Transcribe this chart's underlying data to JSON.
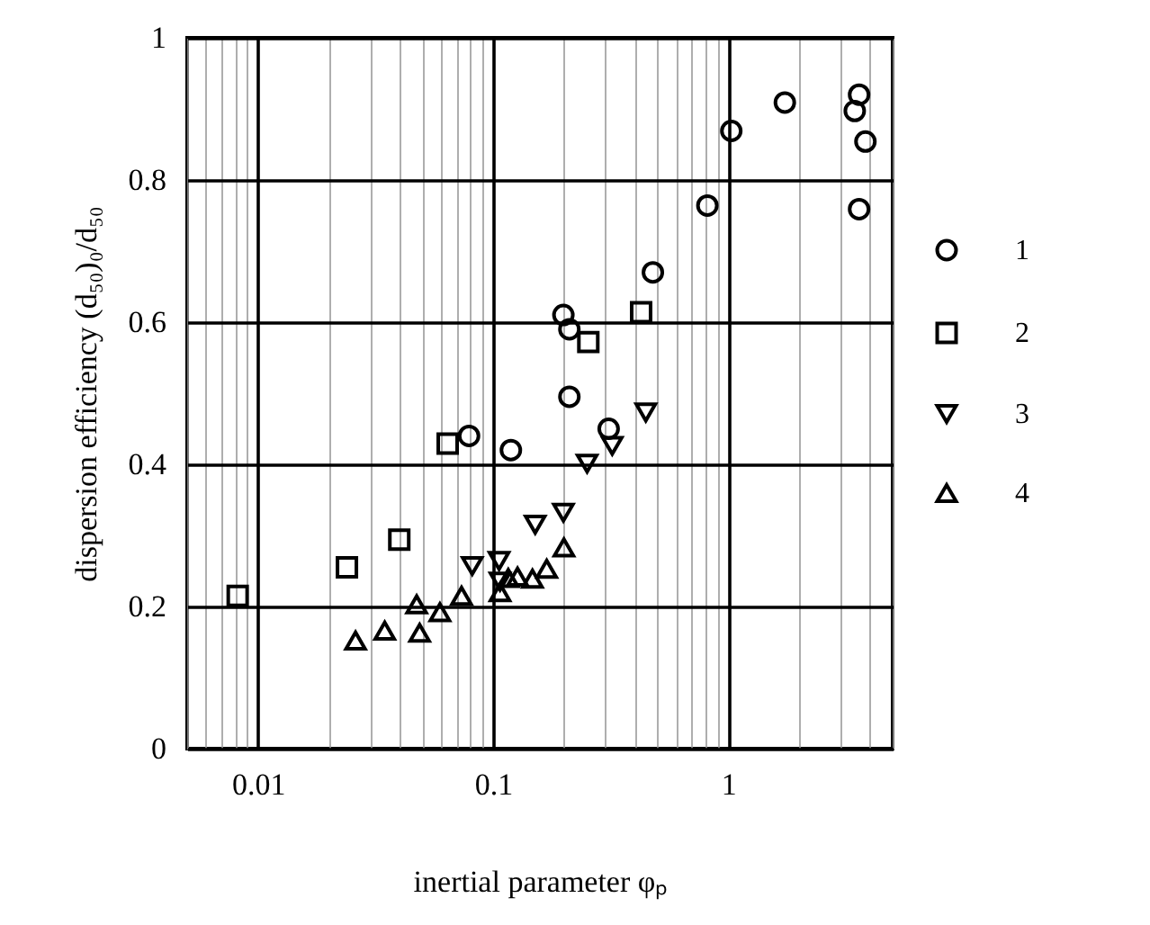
{
  "chart_data": {
    "type": "scatter",
    "xlabel": "inertial parameter  φₚ",
    "ylabel": "dispersion efficiency  (d₅₀)₀/d₅₀",
    "log": "x",
    "grid": true,
    "legend": "right",
    "xlim": [
      0.005,
      5
    ],
    "xticks": [
      {
        "value": 0.005,
        "label": null
      },
      {
        "value": 0.006,
        "label": null
      },
      {
        "value": 0.007,
        "label": null
      },
      {
        "value": 0.008,
        "label": null
      },
      {
        "value": 0.009,
        "label": null
      },
      0.01,
      {
        "value": 0.02,
        "label": null
      },
      {
        "value": 0.03,
        "label": null
      },
      {
        "value": 0.04,
        "label": null
      },
      {
        "value": 0.05,
        "label": null
      },
      {
        "value": 0.06,
        "label": null
      },
      {
        "value": 0.07,
        "label": null
      },
      {
        "value": 0.08,
        "label": null
      },
      {
        "value": 0.09,
        "label": null
      },
      0.1,
      {
        "value": 0.2,
        "label": null
      },
      {
        "value": 0.3,
        "label": null
      },
      {
        "value": 0.4,
        "label": null
      },
      {
        "value": 0.5,
        "label": null
      },
      {
        "value": 0.6,
        "label": null
      },
      {
        "value": 0.7,
        "label": null
      },
      {
        "value": 0.8,
        "label": null
      },
      {
        "value": 0.9,
        "label": null
      },
      1,
      {
        "value": 2,
        "label": null
      },
      {
        "value": 3,
        "label": null
      },
      {
        "value": 4,
        "label": null
      },
      {
        "value": 5,
        "label": null
      }
    ],
    "ylim": [
      0,
      1
    ],
    "yticks": [
      0,
      0.2,
      0.4,
      0.6,
      0.8,
      1
    ],
    "series": [
      {
        "name": "1",
        "color": "#000000",
        "marker": "circle",
        "x": [
          0.079,
          0.119,
          0.199,
          0.211,
          0.211,
          0.31,
          0.478,
          0.815,
          1.03,
          1.74,
          3.6,
          3.45,
          3.83,
          3.6
        ],
        "values": [
          0.44,
          0.42,
          0.61,
          0.59,
          0.495,
          0.45,
          0.67,
          0.764,
          0.869,
          0.909,
          0.92,
          0.897,
          0.854,
          0.759
        ]
      },
      {
        "name": "2",
        "color": "#000000",
        "marker": "square",
        "x": [
          0.0082,
          0.0239,
          0.0399,
          0.0641,
          0.254,
          0.426
        ],
        "values": [
          0.215,
          0.255,
          0.294,
          0.429,
          0.572,
          0.614
        ]
      },
      {
        "name": "3",
        "color": "#000000",
        "marker": "triangle-down",
        "x": [
          0.0815,
          0.106,
          0.107,
          0.151,
          0.199,
          0.251,
          0.321,
          0.446
        ],
        "values": [
          0.257,
          0.264,
          0.235,
          0.315,
          0.332,
          0.401,
          0.426,
          0.473
        ]
      },
      {
        "name": "4",
        "color": "#000000",
        "marker": "triangle",
        "x": [
          0.026,
          0.0346,
          0.0487,
          0.0473,
          0.0594,
          0.0734,
          0.107,
          0.116,
          0.127,
          0.147,
          0.169,
          0.2
        ],
        "values": [
          0.152,
          0.166,
          0.163,
          0.203,
          0.192,
          0.215,
          0.22,
          0.24,
          0.242,
          0.239,
          0.253,
          0.283
        ]
      }
    ]
  }
}
